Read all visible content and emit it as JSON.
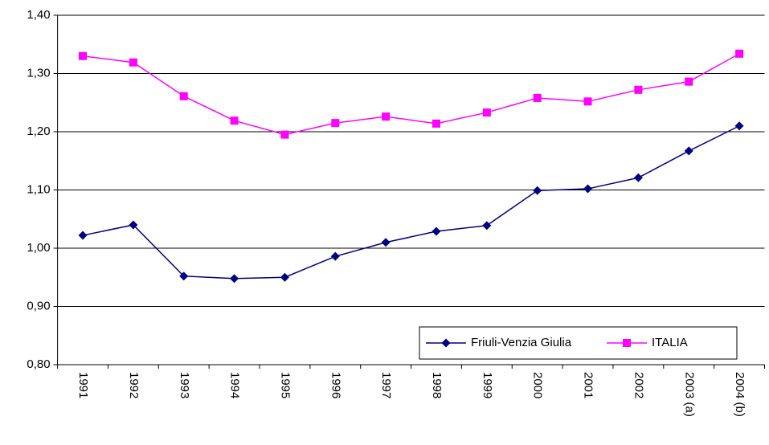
{
  "chart_data": {
    "type": "line",
    "categories": [
      "1991",
      "1992",
      "1993",
      "1994",
      "1995",
      "1996",
      "1997",
      "1998",
      "1999",
      "2000",
      "2001",
      "2002",
      "2003 (a)",
      "2004 (b)"
    ],
    "series": [
      {
        "name": "Friuli-Venzia Giulia",
        "color": "#000080",
        "marker": "diamond",
        "values": [
          1.022,
          1.04,
          0.952,
          0.948,
          0.95,
          0.986,
          1.01,
          1.029,
          1.039,
          1.099,
          1.102,
          1.121,
          1.167,
          1.21
        ]
      },
      {
        "name": "ITALIA",
        "color": "#ff00ff",
        "marker": "square",
        "values": [
          1.33,
          1.319,
          1.261,
          1.219,
          1.195,
          1.215,
          1.226,
          1.214,
          1.233,
          1.258,
          1.252,
          1.272,
          1.286,
          1.334
        ]
      }
    ],
    "ylim": [
      0.8,
      1.4
    ],
    "yticks": [
      {
        "value": 0.8,
        "label": "0,80"
      },
      {
        "value": 0.9,
        "label": "0,90"
      },
      {
        "value": 1.0,
        "label": "1,00"
      },
      {
        "value": 1.1,
        "label": "1,10"
      },
      {
        "value": 1.2,
        "label": "1,20"
      },
      {
        "value": 1.3,
        "label": "1,30"
      },
      {
        "value": 1.4,
        "label": "1,40"
      }
    ],
    "grid": true,
    "legend": "lower right"
  }
}
